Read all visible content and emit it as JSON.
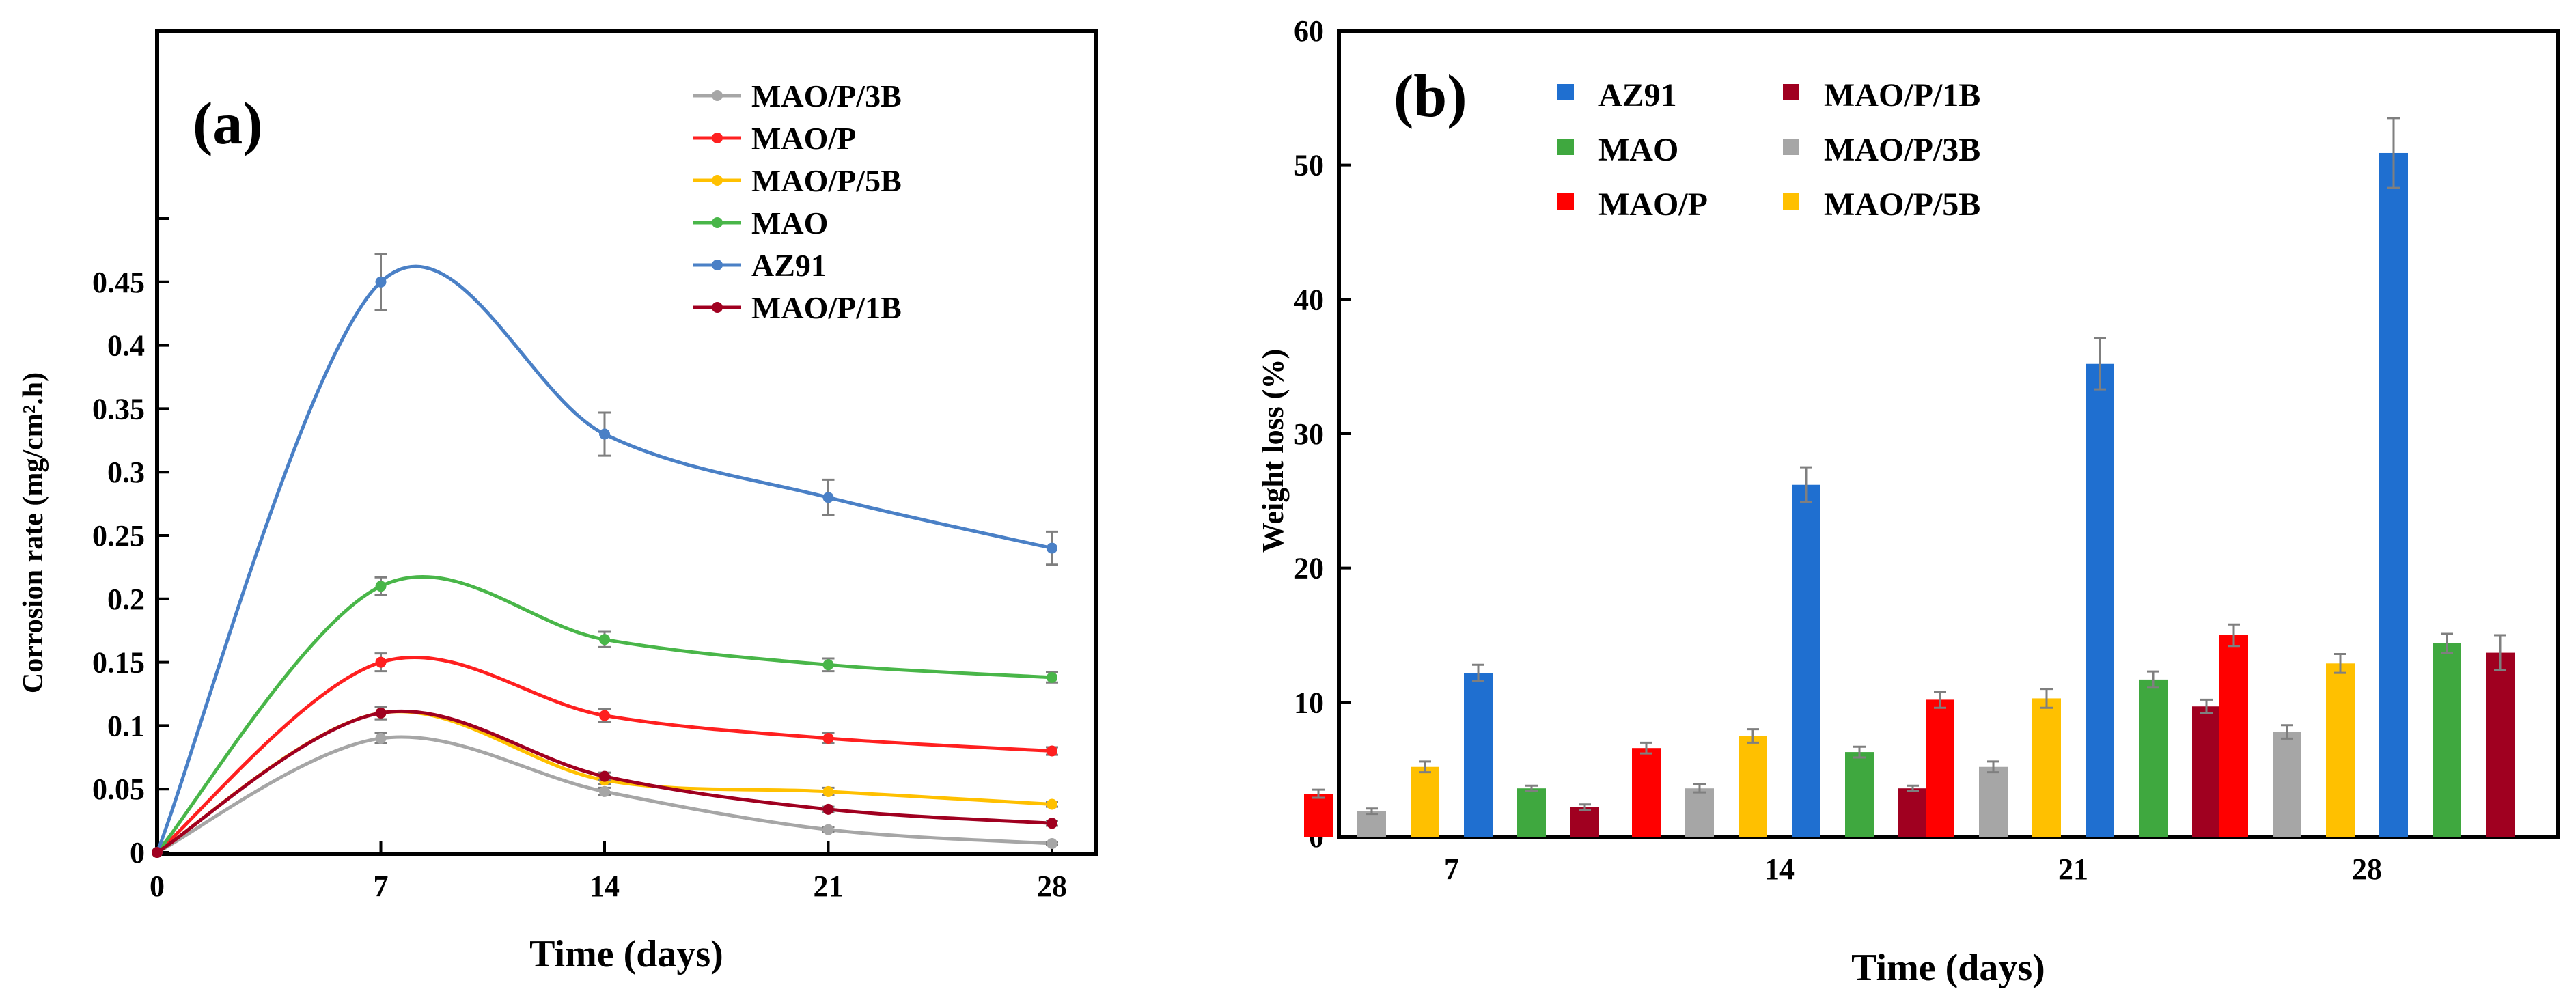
{
  "chart_data": [
    {
      "type": "line",
      "panel_label": "(a)",
      "xlabel": "Time (days)",
      "ylabel": "Corrosion rate (mg/cm².h)",
      "x": [
        0,
        7,
        14,
        21,
        28
      ],
      "x_ticks": [
        "0",
        "7",
        "14",
        "21",
        "28"
      ],
      "xlim": [
        0,
        28
      ],
      "ylim": [
        0,
        0.5
      ],
      "y_ticks": [
        "0",
        "0.05",
        "0.1",
        "0.15",
        "0.2",
        "0.25",
        "0.3",
        "0.35",
        "0.4",
        "0.45",
        "0.5"
      ],
      "grid": false,
      "legend_position": "top-right",
      "series": [
        {
          "name": "MAO/P/3B",
          "color": "#a6a6a6",
          "values": [
            0,
            0.09,
            0.048,
            0.018,
            0.007
          ],
          "errors": [
            0,
            0.004,
            0.003,
            0.002,
            0.001
          ]
        },
        {
          "name": "MAO/P",
          "color": "#ff2020",
          "values": [
            0,
            0.15,
            0.108,
            0.09,
            0.08
          ],
          "errors": [
            0,
            0.007,
            0.005,
            0.004,
            0.003
          ]
        },
        {
          "name": "MAO/P/5B",
          "color": "#ffc000",
          "values": [
            0,
            0.11,
            0.057,
            0.048,
            0.038
          ],
          "errors": [
            0,
            0.005,
            0.003,
            0.003,
            0.002
          ]
        },
        {
          "name": "MAO",
          "color": "#49b649",
          "values": [
            0,
            0.21,
            0.168,
            0.148,
            0.138
          ],
          "errors": [
            0,
            0.007,
            0.006,
            0.005,
            0.004
          ]
        },
        {
          "name": "AZ91",
          "color": "#4a80c6",
          "values": [
            0,
            0.45,
            0.33,
            0.28,
            0.24
          ],
          "errors": [
            0,
            0.022,
            0.017,
            0.014,
            0.013
          ]
        },
        {
          "name": "MAO/P/1B",
          "color": "#a00020",
          "values": [
            0,
            0.11,
            0.06,
            0.034,
            0.023
          ],
          "errors": [
            0,
            0.005,
            0.003,
            0.002,
            0.002
          ]
        }
      ]
    },
    {
      "type": "bar",
      "panel_label": "(b)",
      "xlabel": "Time (days)",
      "ylabel": "Weight loss (%)",
      "categories": [
        "7",
        "14",
        "21",
        "28"
      ],
      "ylim": [
        0,
        60
      ],
      "y_ticks": [
        "0",
        "10",
        "20",
        "30",
        "40",
        "50",
        "60"
      ],
      "grid": false,
      "legend_position": "top-left",
      "series": [
        {
          "name": "MAO/P",
          "color": "#ff0000",
          "values": [
            3.2,
            6.6,
            10.2,
            15.0
          ],
          "errors": [
            0.3,
            0.4,
            0.6,
            0.8
          ]
        },
        {
          "name": "MAO/P/3B",
          "color": "#a6a6a6",
          "values": [
            1.9,
            3.6,
            5.2,
            7.8
          ],
          "errors": [
            0.2,
            0.3,
            0.4,
            0.5
          ]
        },
        {
          "name": "MAO/P/5B",
          "color": "#ffc000",
          "values": [
            5.2,
            7.5,
            10.3,
            12.9
          ],
          "errors": [
            0.4,
            0.5,
            0.7,
            0.7
          ]
        },
        {
          "name": "AZ91",
          "color": "#1f6fd0",
          "values": [
            12.2,
            26.2,
            35.2,
            50.9
          ],
          "errors": [
            0.6,
            1.3,
            1.9,
            2.6
          ]
        },
        {
          "name": "MAO",
          "color": "#3fa83f",
          "values": [
            3.6,
            6.3,
            11.7,
            14.4
          ],
          "errors": [
            0.2,
            0.4,
            0.6,
            0.7
          ]
        },
        {
          "name": "MAO/P/1B",
          "color": "#a00020",
          "values": [
            2.2,
            3.6,
            9.7,
            13.7
          ],
          "errors": [
            0.2,
            0.2,
            0.5,
            1.3
          ]
        }
      ],
      "legend_order": [
        "AZ91",
        "MAO/P/1B",
        "MAO",
        "MAO/P/3B",
        "MAO/P",
        "MAO/P/5B"
      ]
    }
  ]
}
